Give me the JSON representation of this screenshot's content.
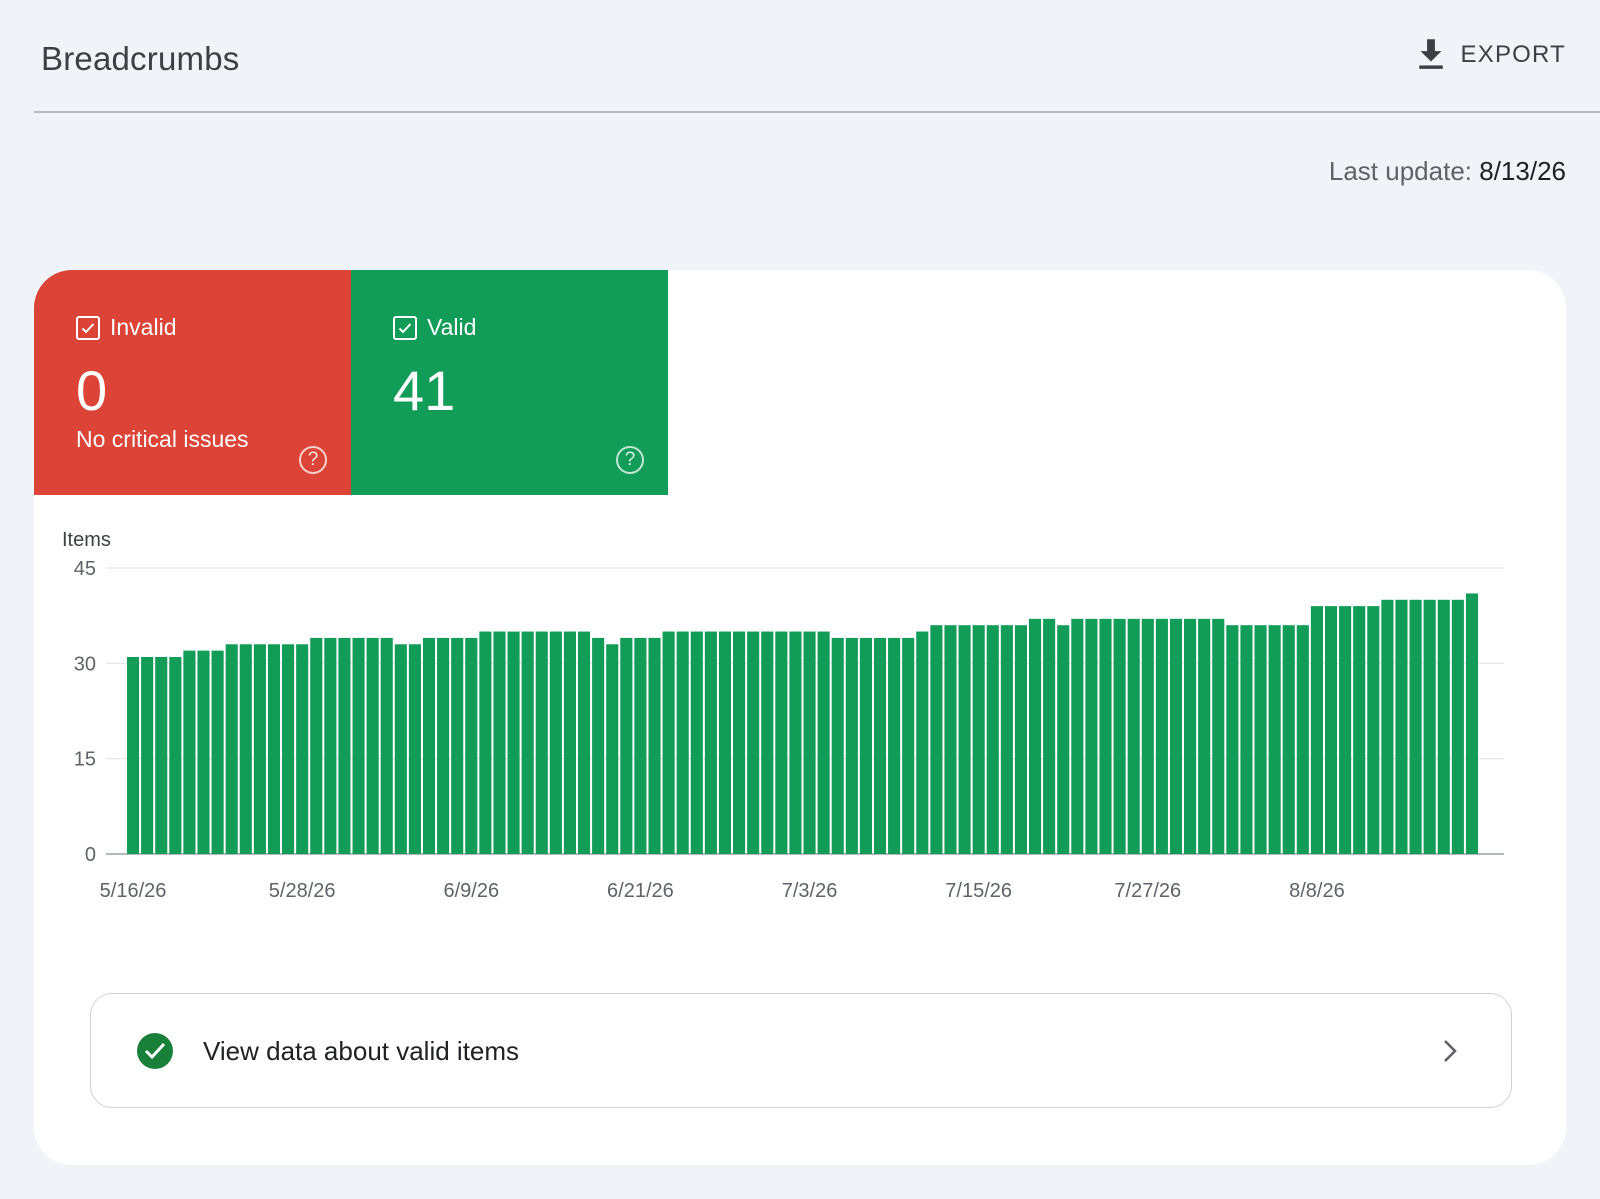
{
  "header": {
    "title": "Breadcrumbs",
    "export_label": "EXPORT"
  },
  "last_update": {
    "label": "Last update:",
    "date": "8/13/26"
  },
  "tiles": [
    {
      "label": "Invalid",
      "count": "0",
      "subtitle": "No critical issues",
      "color": "#dc4438"
    },
    {
      "label": "Valid",
      "count": "41",
      "subtitle": "",
      "color": "#119c58"
    }
  ],
  "valid_link": {
    "label": "View data about valid items"
  },
  "icons": [
    "download-icon",
    "checkbox-icon",
    "help-icon",
    "check-circle-icon",
    "chevron-right-icon"
  ],
  "chart_data": {
    "type": "bar",
    "ylabel": "Items",
    "ylim": [
      0,
      45
    ],
    "yticks": [
      0,
      15,
      30,
      45
    ],
    "x_tick_labels": [
      "5/16/26",
      "5/28/26",
      "6/9/26",
      "6/21/26",
      "7/3/26",
      "7/15/26",
      "7/27/26",
      "8/8/26"
    ],
    "x_tick_every": 12,
    "grid": true,
    "color": "#119c58",
    "start_date": "5/16/26",
    "values": [
      31,
      31,
      31,
      31,
      32,
      32,
      32,
      33,
      33,
      33,
      33,
      33,
      33,
      34,
      34,
      34,
      34,
      34,
      34,
      33,
      33,
      34,
      34,
      34,
      34,
      35,
      35,
      35,
      35,
      35,
      35,
      35,
      35,
      34,
      33,
      34,
      34,
      34,
      35,
      35,
      35,
      35,
      35,
      35,
      35,
      35,
      35,
      35,
      35,
      35,
      34,
      34,
      34,
      34,
      34,
      34,
      35,
      36,
      36,
      36,
      36,
      36,
      36,
      36,
      37,
      37,
      36,
      37,
      37,
      37,
      37,
      37,
      37,
      37,
      37,
      37,
      37,
      37,
      36,
      36,
      36,
      36,
      36,
      36,
      39,
      39,
      39,
      39,
      39,
      40,
      40,
      40,
      40,
      40,
      40,
      41
    ]
  }
}
